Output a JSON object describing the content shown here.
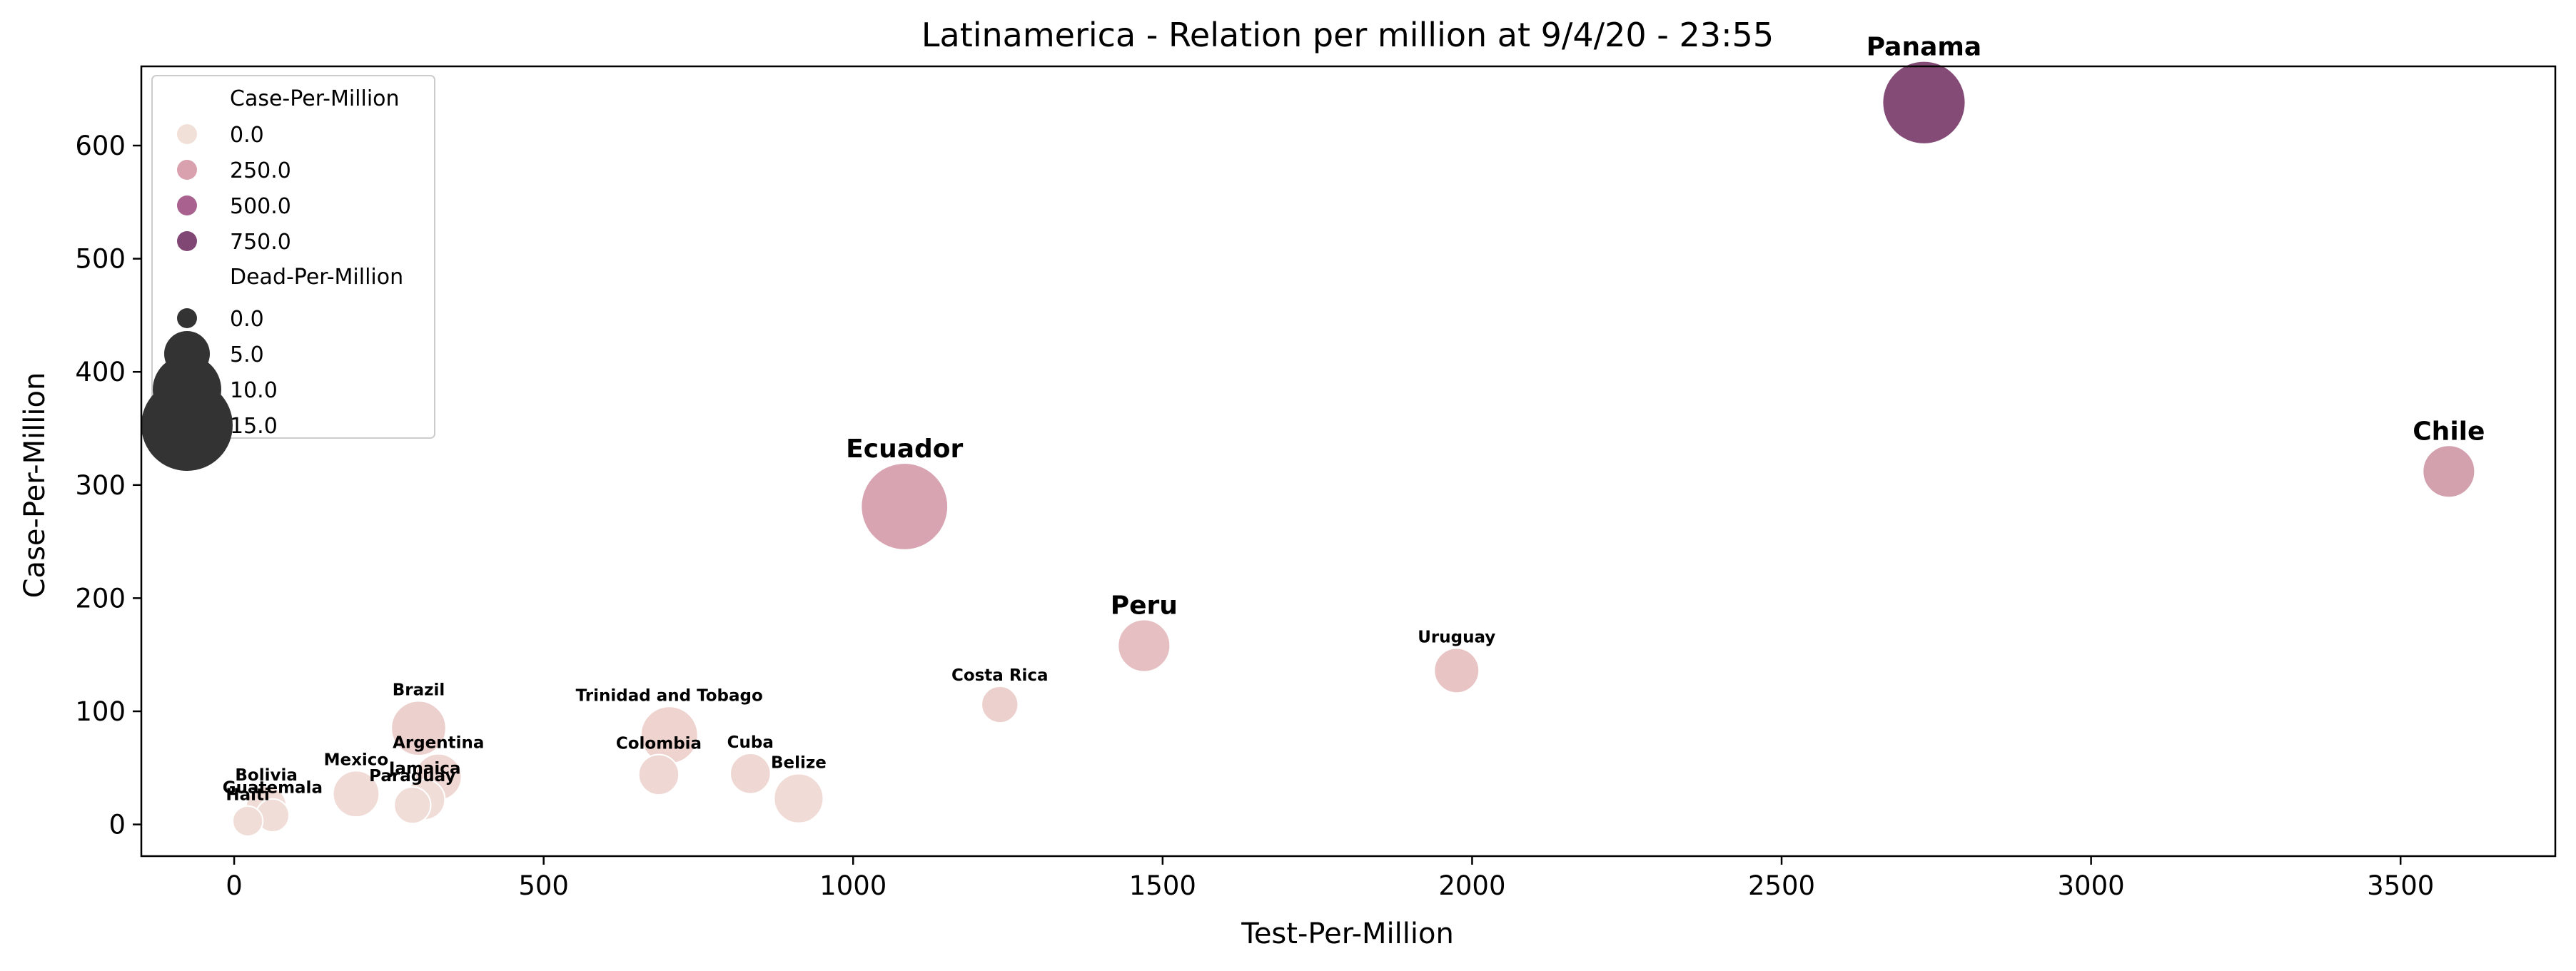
{
  "chart_data": {
    "type": "scatter",
    "title": "Latinamerica - Relation per million at 9/4/20 - 23:55",
    "xlabel": "Test-Per-Million",
    "ylabel": "Case-Per-Million",
    "xlim": [
      -150,
      3750
    ],
    "ylim": [
      -28,
      670
    ],
    "xticks": [
      0,
      500,
      1000,
      1500,
      2000,
      2500,
      3000,
      3500
    ],
    "yticks": [
      0,
      100,
      200,
      300,
      400,
      500,
      600
    ],
    "grid": false,
    "legend": {
      "placement": "top-left",
      "hue_title": "Case-Per-Million",
      "hue_entries": [
        {
          "label": "0.0",
          "color": "#f1e0d8"
        },
        {
          "label": "250.0",
          "color": "#d9a0ae"
        },
        {
          "label": "500.0",
          "color": "#a9618f"
        },
        {
          "label": "750.0",
          "color": "#804674"
        }
      ],
      "size_title": "Dead-Per-Million",
      "size_entries": [
        {
          "label": "0.0",
          "value": 0
        },
        {
          "label": "5.0",
          "value": 5
        },
        {
          "label": "10.0",
          "value": 10
        },
        {
          "label": "15.0",
          "value": 15
        }
      ]
    },
    "points": [
      {
        "label": "Panama",
        "x": 2730,
        "y": 638,
        "dead": 11.5,
        "color": "#854b77",
        "label_color": "#0000ff",
        "label_size": "large"
      },
      {
        "label": "Chile",
        "x": 3578,
        "y": 312,
        "dead": 3.0,
        "color": "#d3a0ae",
        "label_color": "#000000",
        "label_size": "large"
      },
      {
        "label": "Ecuador",
        "x": 1083,
        "y": 281,
        "dead": 13.0,
        "color": "#d9a4b1",
        "label_color": "#000000",
        "label_size": "large"
      },
      {
        "label": "Peru",
        "x": 1470,
        "y": 158,
        "dead": 3.0,
        "color": "#e5bfc1",
        "label_color": "#000000",
        "label_size": "large"
      },
      {
        "label": "Uruguay",
        "x": 1975,
        "y": 136,
        "dead": 1.8,
        "color": "#e8c4c5",
        "label_color": "#000000",
        "label_size": "small"
      },
      {
        "label": "Costa Rica",
        "x": 1237,
        "y": 106,
        "dead": 0.8,
        "color": "#ecd0cd",
        "label_color": "#000000",
        "label_size": "small"
      },
      {
        "label": "Brazil",
        "x": 298,
        "y": 85,
        "dead": 3.5,
        "color": "#ecd0cd",
        "label_color": "#000000",
        "label_size": "small"
      },
      {
        "label": "Trinidad and Tobago",
        "x": 703,
        "y": 79,
        "dead": 4.0,
        "color": "#eed3cf",
        "label_color": "#000000",
        "label_size": "small"
      },
      {
        "label": "Argentina",
        "x": 330,
        "y": 42,
        "dead": 2.0,
        "color": "#efd8d3",
        "label_color": "#000000",
        "label_size": "small"
      },
      {
        "label": "Colombia",
        "x": 686,
        "y": 44,
        "dead": 1.2,
        "color": "#efd8d3",
        "label_color": "#000000",
        "label_size": "small"
      },
      {
        "label": "Cuba",
        "x": 834,
        "y": 45,
        "dead": 1.2,
        "color": "#efd8d3",
        "label_color": "#000000",
        "label_size": "small"
      },
      {
        "label": "Belize",
        "x": 912,
        "y": 23,
        "dead": 2.5,
        "color": "#f0dbd6",
        "label_color": "#000000",
        "label_size": "small"
      },
      {
        "label": "Mexico",
        "x": 197,
        "y": 27,
        "dead": 2.0,
        "color": "#f0dbd6",
        "label_color": "#000000",
        "label_size": "small"
      },
      {
        "label": "Jamaica",
        "x": 308,
        "y": 22,
        "dead": 1.2,
        "color": "#f1ddd8",
        "label_color": "#000000",
        "label_size": "small"
      },
      {
        "label": "Paraguay",
        "x": 288,
        "y": 17,
        "dead": 0.8,
        "color": "#f1ddd8",
        "label_color": "#000000",
        "label_size": "small"
      },
      {
        "label": "Bolivia",
        "x": 52,
        "y": 16,
        "dead": 1.2,
        "color": "#f1ddd8",
        "label_color": "#000000",
        "label_size": "small"
      },
      {
        "label": "Guatemala",
        "x": 62,
        "y": 8,
        "dead": 0.5,
        "color": "#f1ddd8",
        "label_color": "#000000",
        "label_size": "small"
      },
      {
        "label": "Haiti",
        "x": 22,
        "y": 3,
        "dead": 0.3,
        "color": "#f1ddd8",
        "label_color": "#000000",
        "label_size": "small"
      }
    ]
  }
}
